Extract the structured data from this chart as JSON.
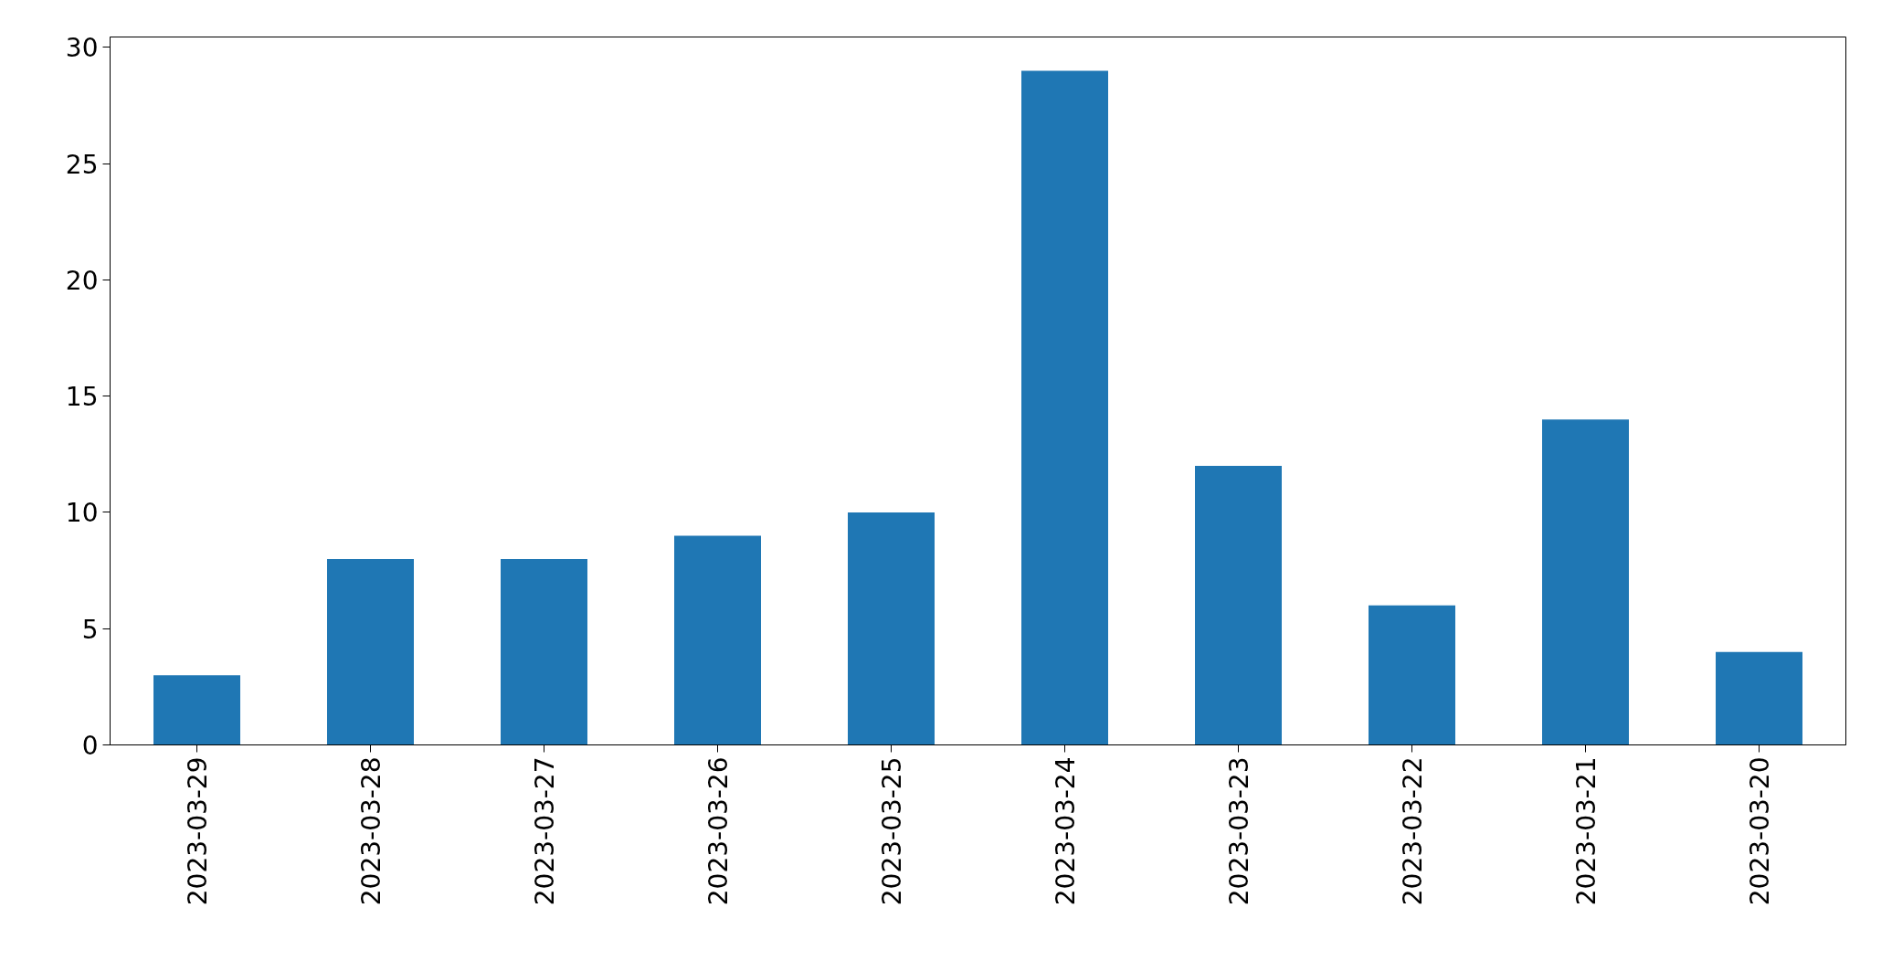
{
  "chart_data": {
    "type": "bar",
    "categories": [
      "2023-03-29",
      "2023-03-28",
      "2023-03-27",
      "2023-03-26",
      "2023-03-25",
      "2023-03-24",
      "2023-03-23",
      "2023-03-22",
      "2023-03-21",
      "2023-03-20"
    ],
    "values": [
      3,
      8,
      8,
      9,
      10,
      29,
      12,
      6,
      14,
      4
    ],
    "color": "#1f77b4",
    "ylim": [
      0,
      30.45
    ],
    "yticks": [
      0,
      5,
      10,
      15,
      20,
      25,
      30
    ],
    "grid": false
  }
}
